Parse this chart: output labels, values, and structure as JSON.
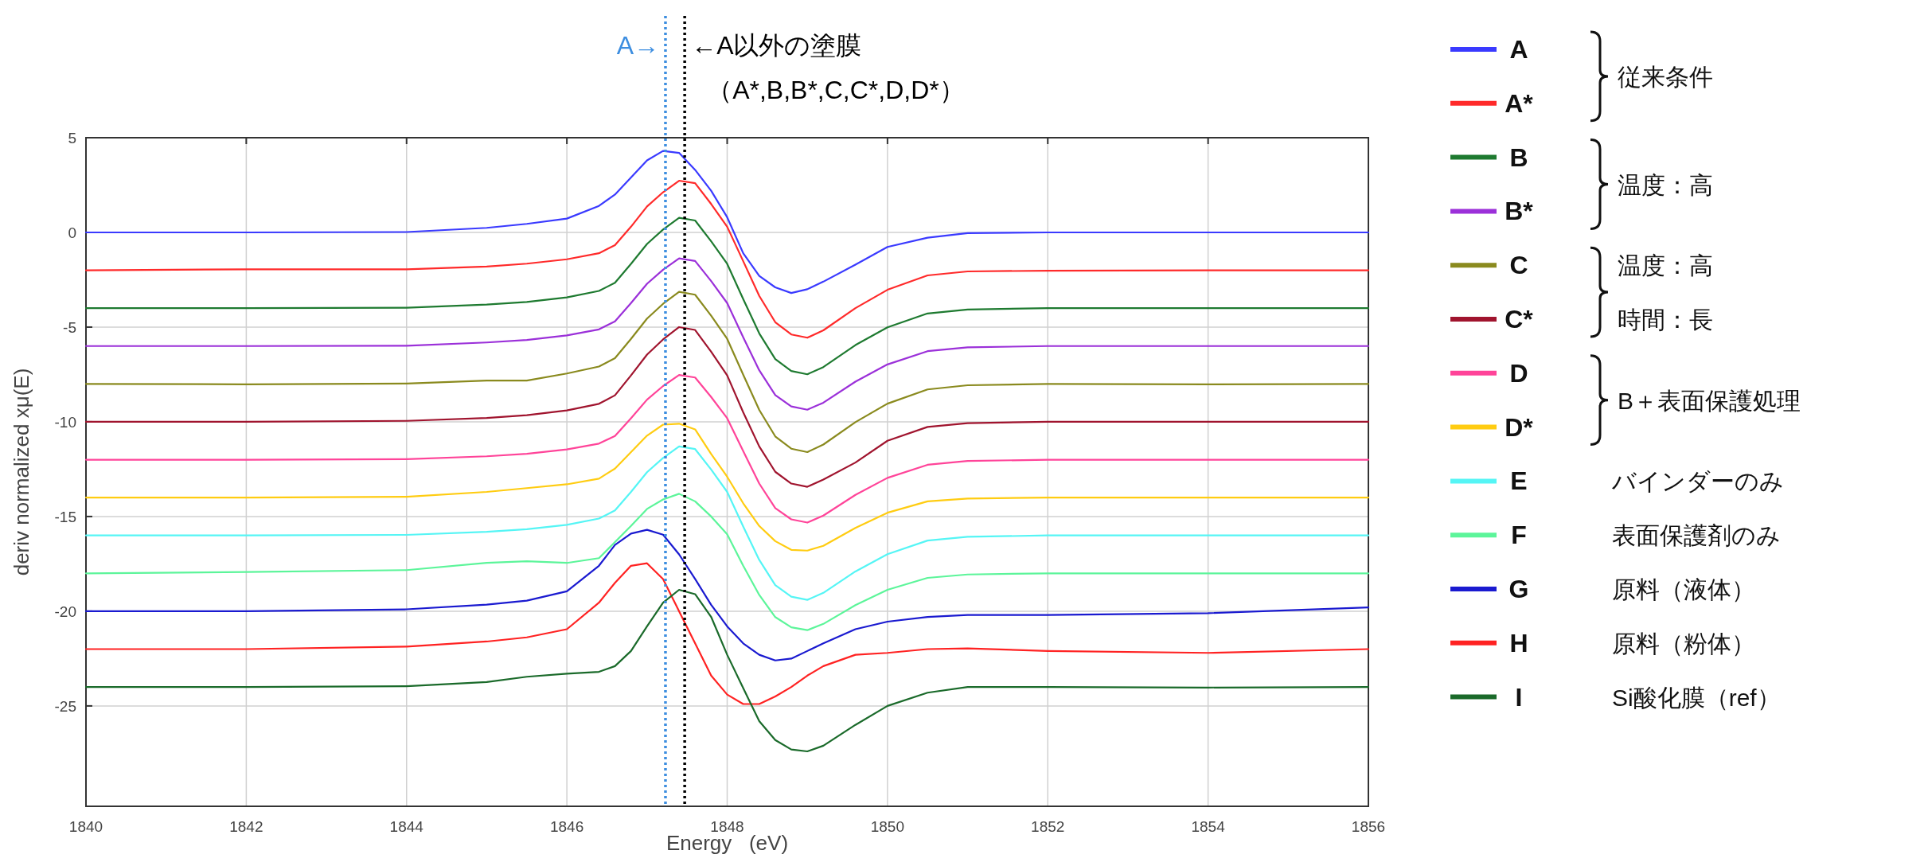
{
  "chart_data": {
    "type": "line",
    "xlabel": "Energy   (eV)",
    "ylabel": "deriv normalized xμ(E)",
    "x": [
      1840,
      1842,
      1844,
      1845,
      1845.5,
      1846,
      1846.4,
      1846.6,
      1846.8,
      1847,
      1847.2,
      1847.4,
      1847.6,
      1847.8,
      1848,
      1848.2,
      1848.4,
      1848.6,
      1848.8,
      1849,
      1849.2,
      1849.6,
      1850,
      1850.5,
      1851,
      1852,
      1854,
      1856
    ],
    "xlim": [
      1840,
      1856
    ],
    "xticks": [
      1840,
      1842,
      1844,
      1846,
      1848,
      1850,
      1852,
      1854,
      1856
    ],
    "ylim": [
      -30.3,
      5
    ],
    "yticks": [
      5,
      0,
      -5,
      -10,
      -15,
      -20,
      -25
    ],
    "grid": true,
    "legend": "right",
    "line_style": "solid",
    "series": [
      {
        "name": "A",
        "color": "#3a3aff",
        "values": [
          0,
          0,
          0.02,
          0.24,
          0.45,
          0.73,
          1.4,
          2.0,
          2.9,
          3.8,
          4.3,
          4.2,
          3.3,
          2.2,
          0.8,
          -1.1,
          -2.3,
          -2.9,
          -3.2,
          -3.0,
          -2.6,
          -1.7,
          -0.77,
          -0.28,
          -0.04,
          0,
          0,
          0
        ]
      },
      {
        "name": "A*",
        "color": "#ff2a2a",
        "values": [
          -2,
          -1.95,
          -1.95,
          -1.8,
          -1.65,
          -1.42,
          -1.1,
          -0.67,
          0.3,
          1.37,
          2.12,
          2.73,
          2.6,
          1.5,
          0.3,
          -1.52,
          -3.35,
          -4.74,
          -5.39,
          -5.56,
          -5.17,
          -4.0,
          -3.03,
          -2.27,
          -2.06,
          -2.02,
          -2,
          -2
        ]
      },
      {
        "name": "B",
        "color": "#1e7a30",
        "values": [
          -4,
          -4,
          -3.98,
          -3.81,
          -3.67,
          -3.43,
          -3.09,
          -2.66,
          -1.66,
          -0.61,
          0.15,
          0.77,
          0.63,
          -0.47,
          -1.66,
          -3.52,
          -5.33,
          -6.69,
          -7.32,
          -7.49,
          -7.11,
          -5.95,
          -5.01,
          -4.28,
          -4.07,
          -4,
          -4,
          -4
        ]
      },
      {
        "name": "B*",
        "color": "#9b30d9",
        "values": [
          -6,
          -6,
          -5.98,
          -5.81,
          -5.68,
          -5.44,
          -5.12,
          -4.7,
          -3.73,
          -2.71,
          -1.97,
          -1.37,
          -1.51,
          -2.57,
          -3.73,
          -5.54,
          -7.28,
          -8.59,
          -9.19,
          -9.36,
          -8.99,
          -7.88,
          -6.97,
          -6.27,
          -6.07,
          -6,
          -6,
          -6
        ]
      },
      {
        "name": "C",
        "color": "#8a8a1e",
        "values": [
          -8,
          -8.02,
          -7.98,
          -7.82,
          -7.82,
          -7.45,
          -7.08,
          -6.64,
          -5.62,
          -4.55,
          -3.77,
          -3.14,
          -3.29,
          -4.4,
          -5.62,
          -7.51,
          -9.37,
          -10.77,
          -11.42,
          -11.6,
          -11.2,
          -10.02,
          -9.04,
          -8.29,
          -8.07,
          -8,
          -8.02,
          -8
        ]
      },
      {
        "name": "C*",
        "color": "#a0142e",
        "values": [
          -10,
          -10,
          -9.95,
          -9.8,
          -9.65,
          -9.4,
          -9.05,
          -8.6,
          -7.55,
          -6.45,
          -5.65,
          -5.0,
          -5.15,
          -6.3,
          -7.55,
          -9.5,
          -11.3,
          -12.64,
          -13.26,
          -13.43,
          -13.05,
          -12.15,
          -11.0,
          -10.27,
          -10.07,
          -10,
          -10,
          -10
        ]
      },
      {
        "name": "D",
        "color": "#ff4499",
        "values": [
          -12,
          -12,
          -11.97,
          -11.82,
          -11.69,
          -11.46,
          -11.15,
          -10.75,
          -9.81,
          -8.83,
          -8.11,
          -7.53,
          -7.66,
          -8.69,
          -9.81,
          -11.55,
          -13.26,
          -14.56,
          -15.15,
          -15.32,
          -14.95,
          -13.86,
          -12.96,
          -12.27,
          -12.07,
          -12,
          -12,
          -12
        ]
      },
      {
        "name": "D*",
        "color": "#ffcc11",
        "values": [
          -14,
          -14,
          -13.96,
          -13.7,
          -13.5,
          -13.3,
          -13.0,
          -12.47,
          -11.6,
          -10.73,
          -10.15,
          -10.1,
          -10.4,
          -11.7,
          -12.9,
          -14.3,
          -15.5,
          -16.3,
          -16.76,
          -16.8,
          -16.55,
          -15.6,
          -14.8,
          -14.2,
          -14.05,
          -14,
          -14,
          -14
        ]
      },
      {
        "name": "E",
        "color": "#55f5f5",
        "values": [
          -16,
          -16,
          -15.97,
          -15.81,
          -15.67,
          -15.44,
          -15.11,
          -14.68,
          -13.7,
          -12.66,
          -11.91,
          -11.3,
          -11.44,
          -12.52,
          -13.7,
          -15.53,
          -17.29,
          -18.62,
          -19.23,
          -19.4,
          -19.03,
          -17.9,
          -16.99,
          -16.27,
          -16.07,
          -16,
          -16,
          -16
        ]
      },
      {
        "name": "F",
        "color": "#5cf59a",
        "values": [
          -18,
          -17.93,
          -17.83,
          -17.45,
          -17.36,
          -17.45,
          -17.2,
          -16.35,
          -15.5,
          -14.6,
          -14.1,
          -13.8,
          -14.2,
          -15.0,
          -15.94,
          -17.6,
          -19.14,
          -20.31,
          -20.85,
          -21.0,
          -20.67,
          -19.68,
          -18.87,
          -18.24,
          -18.06,
          -18,
          -18,
          -18
        ]
      },
      {
        "name": "G",
        "color": "#1a1ad0",
        "values": [
          -20,
          -20,
          -19.9,
          -19.65,
          -19.44,
          -18.95,
          -17.6,
          -16.5,
          -15.9,
          -15.7,
          -15.96,
          -17.0,
          -18.3,
          -19.66,
          -20.8,
          -21.7,
          -22.3,
          -22.6,
          -22.5,
          -22.1,
          -21.7,
          -20.95,
          -20.55,
          -20.3,
          -20.2,
          -20.2,
          -20.1,
          -19.8
        ]
      },
      {
        "name": "H",
        "color": "#ff2222",
        "values": [
          -22,
          -22,
          -21.87,
          -21.6,
          -21.38,
          -20.95,
          -19.55,
          -18.5,
          -17.6,
          -17.47,
          -18.3,
          -20.0,
          -21.7,
          -23.4,
          -24.4,
          -24.9,
          -24.9,
          -24.5,
          -24.0,
          -23.4,
          -22.9,
          -22.3,
          -22.2,
          -22.0,
          -21.96,
          -22.1,
          -22.2,
          -22.0
        ]
      },
      {
        "name": "I",
        "color": "#1a6a2a",
        "values": [
          -24,
          -24,
          -23.96,
          -23.74,
          -23.46,
          -23.3,
          -23.2,
          -22.9,
          -22.1,
          -20.8,
          -19.55,
          -18.87,
          -19.1,
          -20.3,
          -22.3,
          -24.06,
          -25.8,
          -26.8,
          -27.3,
          -27.4,
          -27.1,
          -26.0,
          -25.0,
          -24.3,
          -24.0,
          -24.0,
          -24.03,
          -24.0
        ]
      }
    ],
    "ref_lines": [
      {
        "axis": "x",
        "value": 1847.23,
        "label": "A→",
        "color": "#3d8ee0",
        "line_style": "dotted"
      },
      {
        "axis": "x",
        "value": 1847.47,
        "label": "←A以外の塗膜",
        "color": "#000000",
        "line_style": "dotted"
      }
    ],
    "annotations": [
      "（A*,B,B*,C,C*,D,D*）",
      "従来条件",
      "温度：高",
      "温度：高",
      "時間：長",
      "B＋表面保護処理",
      "バインダーのみ",
      "表面保護剤のみ",
      "原料（液体）",
      "原料（粉体）",
      "Si酸化膜（ref）"
    ]
  }
}
